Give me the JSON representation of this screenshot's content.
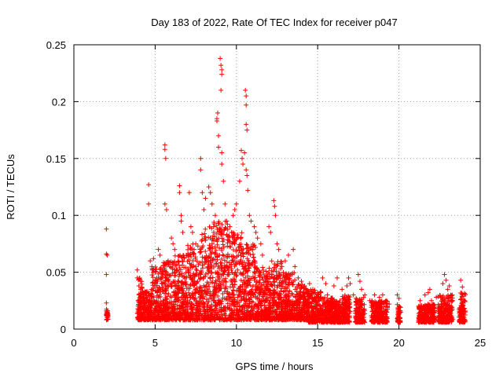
{
  "chart_data": {
    "type": "scatter",
    "title": "Day 183 of 2022, Rate Of TEC Index for receiver p047",
    "xlabel": "GPS time / hours",
    "ylabel": "ROTI / TECUs",
    "xlim": [
      0,
      25
    ],
    "ylim": [
      0,
      0.25
    ],
    "x_ticks": [
      0,
      5,
      10,
      15,
      20,
      25
    ],
    "x_tick_labels": [
      "0",
      "5",
      "10",
      "15",
      "20",
      "25"
    ],
    "y_ticks": [
      0,
      0.05,
      0.1,
      0.15,
      0.2,
      0.25
    ],
    "y_tick_labels": [
      "0",
      "0.05",
      "0.1",
      "0.15",
      "0.2",
      "0.25"
    ],
    "grid": true,
    "marker": "plus",
    "color": "#ff0000",
    "points": [
      [
        2.0,
        0.088
      ],
      [
        2.0,
        0.066
      ],
      [
        2.05,
        0.065
      ],
      [
        2.0,
        0.048
      ],
      [
        2.0,
        0.023
      ],
      [
        2.0,
        0.016
      ],
      [
        2.05,
        0.014
      ],
      [
        2.0,
        0.012
      ],
      [
        2.05,
        0.01
      ],
      [
        2.0,
        0.013
      ],
      [
        3.9,
        0.052
      ],
      [
        3.9,
        0.045
      ],
      [
        4.0,
        0.038
      ],
      [
        4.0,
        0.03
      ],
      [
        3.95,
        0.025
      ],
      [
        4.05,
        0.02
      ],
      [
        4.1,
        0.015
      ],
      [
        4.0,
        0.01
      ],
      [
        4.1,
        0.035
      ],
      [
        4.15,
        0.028
      ],
      [
        4.6,
        0.127
      ],
      [
        4.6,
        0.11
      ],
      [
        4.7,
        0.06
      ],
      [
        4.8,
        0.055
      ],
      [
        4.9,
        0.062
      ],
      [
        5.0,
        0.05
      ],
      [
        5.1,
        0.045
      ],
      [
        5.2,
        0.07
      ],
      [
        5.3,
        0.065
      ],
      [
        5.4,
        0.04
      ],
      [
        5.6,
        0.162
      ],
      [
        5.6,
        0.158
      ],
      [
        5.65,
        0.15
      ],
      [
        5.6,
        0.11
      ],
      [
        5.7,
        0.105
      ],
      [
        5.8,
        0.06
      ],
      [
        5.9,
        0.055
      ],
      [
        6.0,
        0.08
      ],
      [
        6.1,
        0.075
      ],
      [
        6.2,
        0.07
      ],
      [
        6.5,
        0.126
      ],
      [
        6.5,
        0.12
      ],
      [
        6.6,
        0.1
      ],
      [
        6.6,
        0.095
      ],
      [
        6.7,
        0.085
      ],
      [
        7.1,
        0.12
      ],
      [
        7.2,
        0.09
      ],
      [
        7.3,
        0.085
      ],
      [
        7.4,
        0.07
      ],
      [
        7.5,
        0.075
      ],
      [
        7.8,
        0.15
      ],
      [
        7.8,
        0.14
      ],
      [
        7.9,
        0.12
      ],
      [
        8.0,
        0.105
      ],
      [
        8.1,
        0.115
      ],
      [
        8.3,
        0.125
      ],
      [
        8.4,
        0.12
      ],
      [
        8.5,
        0.11
      ],
      [
        8.6,
        0.09
      ],
      [
        8.7,
        0.1
      ],
      [
        8.8,
        0.185
      ],
      [
        8.8,
        0.183
      ],
      [
        8.85,
        0.19
      ],
      [
        8.9,
        0.17
      ],
      [
        8.9,
        0.16
      ],
      [
        9.0,
        0.238
      ],
      [
        9.05,
        0.232
      ],
      [
        9.1,
        0.228
      ],
      [
        9.1,
        0.224
      ],
      [
        9.05,
        0.21
      ],
      [
        9.1,
        0.155
      ],
      [
        9.1,
        0.145
      ],
      [
        9.2,
        0.13
      ],
      [
        9.3,
        0.11
      ],
      [
        9.4,
        0.095
      ],
      [
        9.6,
        0.09
      ],
      [
        9.7,
        0.085
      ],
      [
        9.8,
        0.1
      ],
      [
        9.9,
        0.105
      ],
      [
        10.0,
        0.11
      ],
      [
        10.2,
        0.13
      ],
      [
        10.3,
        0.157
      ],
      [
        10.35,
        0.15
      ],
      [
        10.4,
        0.145
      ],
      [
        10.5,
        0.155
      ],
      [
        10.55,
        0.21
      ],
      [
        10.6,
        0.205
      ],
      [
        10.6,
        0.197
      ],
      [
        10.6,
        0.18
      ],
      [
        10.65,
        0.175
      ],
      [
        10.6,
        0.14
      ],
      [
        10.65,
        0.135
      ],
      [
        10.7,
        0.122
      ],
      [
        10.8,
        0.1
      ],
      [
        10.9,
        0.095
      ],
      [
        11.1,
        0.09
      ],
      [
        11.2,
        0.085
      ],
      [
        11.3,
        0.08
      ],
      [
        11.5,
        0.075
      ],
      [
        11.6,
        0.065
      ],
      [
        12.0,
        0.09
      ],
      [
        12.1,
        0.085
      ],
      [
        12.3,
        0.113
      ],
      [
        12.35,
        0.108
      ],
      [
        12.4,
        0.1
      ],
      [
        12.5,
        0.075
      ],
      [
        12.6,
        0.07
      ],
      [
        12.8,
        0.055
      ],
      [
        13.0,
        0.06
      ],
      [
        13.2,
        0.065
      ],
      [
        13.5,
        0.07
      ],
      [
        13.6,
        0.055
      ],
      [
        13.8,
        0.045
      ],
      [
        14.0,
        0.042
      ],
      [
        14.2,
        0.038
      ],
      [
        14.5,
        0.04
      ],
      [
        14.7,
        0.035
      ],
      [
        15.0,
        0.03
      ],
      [
        15.2,
        0.032
      ],
      [
        15.3,
        0.045
      ],
      [
        15.5,
        0.04
      ],
      [
        15.6,
        0.03
      ],
      [
        15.8,
        0.025
      ],
      [
        16.0,
        0.038
      ],
      [
        16.2,
        0.045
      ],
      [
        16.5,
        0.035
      ],
      [
        16.8,
        0.038
      ],
      [
        16.9,
        0.045
      ],
      [
        17.0,
        0.04
      ],
      [
        17.2,
        0.03
      ],
      [
        17.5,
        0.048
      ],
      [
        17.6,
        0.042
      ],
      [
        17.7,
        0.035
      ],
      [
        17.9,
        0.03
      ],
      [
        18.2,
        0.025
      ],
      [
        18.5,
        0.03
      ],
      [
        18.8,
        0.028
      ],
      [
        19.0,
        0.03
      ],
      [
        19.2,
        0.025
      ],
      [
        19.4,
        0.022
      ],
      [
        19.9,
        0.03
      ],
      [
        20.0,
        0.027
      ],
      [
        20.0,
        0.02
      ],
      [
        20.1,
        0.015
      ],
      [
        20.0,
        0.01
      ],
      [
        21.3,
        0.025
      ],
      [
        21.5,
        0.02
      ],
      [
        21.6,
        0.03
      ],
      [
        21.8,
        0.032
      ],
      [
        21.9,
        0.035
      ],
      [
        22.0,
        0.025
      ],
      [
        22.0,
        0.015
      ],
      [
        22.1,
        0.02
      ],
      [
        22.2,
        0.018
      ],
      [
        22.3,
        0.028
      ],
      [
        22.7,
        0.04
      ],
      [
        22.8,
        0.048
      ],
      [
        22.9,
        0.043
      ],
      [
        23.0,
        0.035
      ],
      [
        23.1,
        0.038
      ],
      [
        23.2,
        0.03
      ],
      [
        23.3,
        0.025
      ],
      [
        23.8,
        0.043
      ],
      [
        23.9,
        0.037
      ],
      [
        24.0,
        0.025
      ]
    ],
    "dense_bands": [
      [
        2.0,
        2.1,
        0.008,
        0.018
      ],
      [
        3.9,
        4.2,
        0.008,
        0.045
      ],
      [
        4.2,
        4.8,
        0.008,
        0.035
      ],
      [
        4.8,
        5.5,
        0.008,
        0.055
      ],
      [
        5.5,
        6.2,
        0.008,
        0.06
      ],
      [
        6.2,
        7.0,
        0.008,
        0.065
      ],
      [
        7.0,
        7.8,
        0.008,
        0.075
      ],
      [
        7.8,
        8.6,
        0.008,
        0.09
      ],
      [
        8.6,
        9.5,
        0.008,
        0.095
      ],
      [
        9.5,
        10.4,
        0.008,
        0.085
      ],
      [
        10.4,
        11.2,
        0.008,
        0.075
      ],
      [
        11.2,
        12.0,
        0.008,
        0.055
      ],
      [
        12.0,
        12.8,
        0.008,
        0.06
      ],
      [
        12.8,
        13.6,
        0.008,
        0.05
      ],
      [
        13.6,
        14.4,
        0.008,
        0.04
      ],
      [
        14.4,
        15.2,
        0.006,
        0.035
      ],
      [
        15.2,
        16.0,
        0.006,
        0.028
      ],
      [
        16.0,
        16.5,
        0.006,
        0.025
      ],
      [
        16.5,
        17.0,
        0.006,
        0.03
      ],
      [
        17.3,
        17.9,
        0.006,
        0.028
      ],
      [
        18.3,
        19.3,
        0.006,
        0.025
      ],
      [
        19.9,
        20.1,
        0.006,
        0.022
      ],
      [
        21.2,
        22.2,
        0.006,
        0.022
      ],
      [
        22.4,
        23.3,
        0.006,
        0.03
      ],
      [
        23.7,
        24.1,
        0.006,
        0.032
      ]
    ]
  }
}
